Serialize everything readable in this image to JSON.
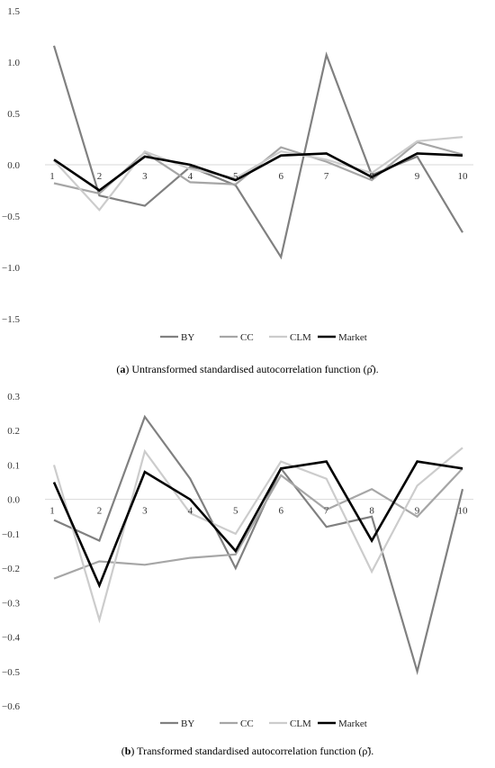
{
  "chart_data": [
    {
      "type": "line",
      "caption_label": "a",
      "caption_text": " Untransformed standardised autocorrelation function (ρ̂).",
      "categories": [
        "1",
        "2",
        "3",
        "4",
        "5",
        "6",
        "7",
        "8",
        "9",
        "10"
      ],
      "ylim": [
        -1.5,
        1.5
      ],
      "yticks": [
        "1.5",
        "1.0",
        "0.5",
        "0.0",
        "−0.5",
        "−1.0",
        "−1.5"
      ],
      "ytick_values": [
        1.5,
        1.0,
        0.5,
        0.0,
        -0.5,
        -1.0,
        -1.5
      ],
      "grid": false,
      "legend_position": "bottom",
      "series": [
        {
          "name": "BY",
          "color": "#808080",
          "width": 2.2,
          "values": [
            1.16,
            -0.3,
            -0.4,
            -0.02,
            -0.2,
            -0.9,
            1.07,
            -0.1,
            0.08,
            -0.66
          ]
        },
        {
          "name": "CC",
          "color": "#a6a6a6",
          "width": 2.2,
          "values": [
            -0.18,
            -0.28,
            0.12,
            -0.17,
            -0.19,
            0.17,
            0.03,
            -0.15,
            0.22,
            0.1
          ]
        },
        {
          "name": "CLM",
          "color": "#cccccc",
          "width": 2.2,
          "values": [
            0.04,
            -0.44,
            0.13,
            -0.04,
            -0.13,
            0.13,
            0.05,
            -0.08,
            0.23,
            0.27
          ]
        },
        {
          "name": "Market",
          "color": "#000000",
          "width": 2.6,
          "values": [
            0.05,
            -0.25,
            0.08,
            0.0,
            -0.15,
            0.09,
            0.11,
            -0.12,
            0.11,
            0.09
          ]
        }
      ]
    },
    {
      "type": "line",
      "caption_label": "b",
      "caption_text": " Transformed standardised autocorrelation function (ρ̃).",
      "categories": [
        "1",
        "2",
        "3",
        "4",
        "5",
        "6",
        "7",
        "8",
        "9",
        "10"
      ],
      "ylim": [
        -0.6,
        0.3
      ],
      "yticks": [
        "0.3",
        "0.2",
        "0.1",
        "0.0",
        "−0.1",
        "−0.2",
        "−0.3",
        "−0.4",
        "−0.5",
        "−0.6"
      ],
      "ytick_values": [
        0.3,
        0.2,
        0.1,
        0.0,
        -0.1,
        -0.2,
        -0.3,
        -0.4,
        -0.5,
        -0.6
      ],
      "grid": false,
      "legend_position": "bottom",
      "series": [
        {
          "name": "BY",
          "color": "#808080",
          "width": 2.2,
          "values": [
            -0.06,
            -0.12,
            0.24,
            0.06,
            -0.2,
            0.09,
            -0.08,
            -0.05,
            -0.5,
            0.03
          ]
        },
        {
          "name": "CC",
          "color": "#a6a6a6",
          "width": 2.2,
          "values": [
            -0.23,
            -0.18,
            -0.19,
            -0.17,
            -0.16,
            0.07,
            -0.03,
            0.03,
            -0.05,
            0.09
          ]
        },
        {
          "name": "CLM",
          "color": "#cccccc",
          "width": 2.2,
          "values": [
            0.1,
            -0.35,
            0.14,
            -0.04,
            -0.1,
            0.11,
            0.06,
            -0.21,
            0.04,
            0.15
          ]
        },
        {
          "name": "Market",
          "color": "#000000",
          "width": 2.6,
          "values": [
            0.05,
            -0.25,
            0.08,
            0.0,
            -0.15,
            0.09,
            0.11,
            -0.12,
            0.11,
            0.09
          ]
        }
      ]
    }
  ]
}
